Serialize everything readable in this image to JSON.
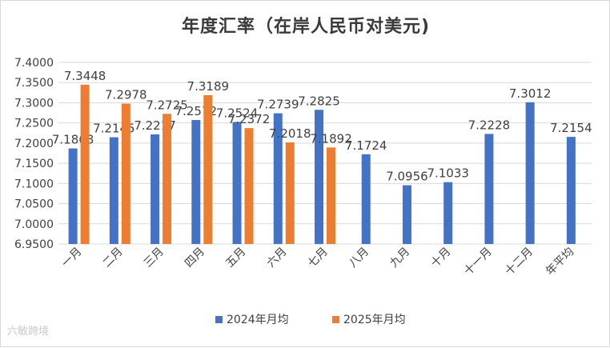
{
  "chart_data": {
    "type": "bar",
    "title": "年度汇率（在岸人民币对美元)",
    "categories": [
      "一月",
      "二月",
      "三月",
      "四月",
      "五月",
      "六月",
      "七月",
      "八月",
      "九月",
      "十月",
      "十一月",
      "十二月",
      "年平均"
    ],
    "series": [
      {
        "name": "2024年月均",
        "color": "#4472C4",
        "values": [
          7.1868,
          7.2145,
          7.2217,
          7.2572,
          7.2524,
          7.2739,
          7.2825,
          7.1724,
          7.0956,
          7.1033,
          7.2228,
          7.3012,
          7.2154
        ]
      },
      {
        "name": "2025年月均",
        "color": "#ED7D31",
        "values": [
          7.3448,
          7.2978,
          7.2725,
          7.3189,
          7.2372,
          7.2018,
          7.1892,
          null,
          null,
          null,
          null,
          null,
          null
        ]
      }
    ],
    "ylim": [
      6.95,
      7.4
    ],
    "ytick_step": 0.05,
    "yticks": [
      "6.9500",
      "7.0000",
      "7.0500",
      "7.1000",
      "7.1500",
      "7.2000",
      "7.2500",
      "7.3000",
      "7.3500",
      "7.4000"
    ],
    "grid": true,
    "legend_placement": "bottom",
    "xlabel": "",
    "ylabel": ""
  },
  "watermark": "六敏跨境"
}
